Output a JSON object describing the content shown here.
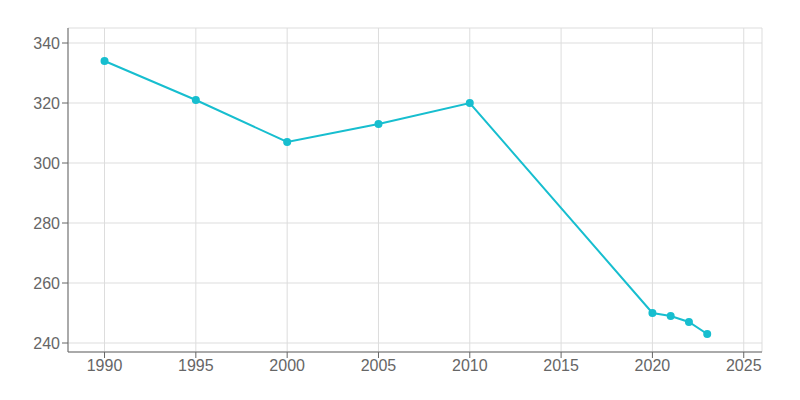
{
  "chart_data": {
    "type": "line",
    "x": [
      1990,
      1995,
      2000,
      2005,
      2010,
      2020,
      2021,
      2022,
      2023
    ],
    "values": [
      334,
      321,
      307,
      313,
      320,
      250,
      249,
      247,
      243
    ],
    "color": "#17becf",
    "marker": "circle",
    "xlim": [
      1988,
      2026
    ],
    "ylim": [
      237,
      345
    ],
    "xticks": [
      1990,
      1995,
      2000,
      2005,
      2010,
      2015,
      2020,
      2025
    ],
    "yticks": [
      240,
      260,
      280,
      300,
      320,
      340
    ],
    "grid": true
  }
}
